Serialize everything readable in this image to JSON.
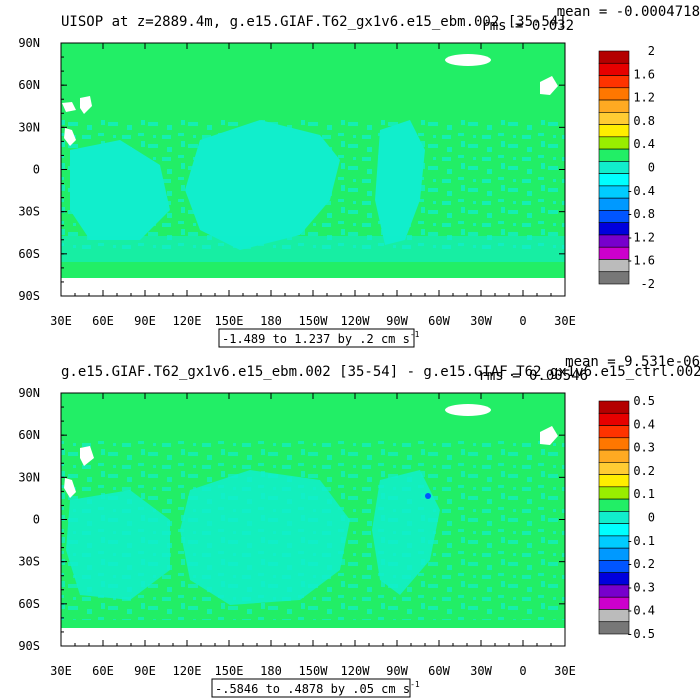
{
  "panels": [
    {
      "title": "UISOP at z=2889.4m, g.e15.GIAF.T62_gx1v6.e15_ebm.002 [35-54]",
      "stat_mean": "mean = -0.0004718",
      "stat_rms": "rms = 0.032",
      "range_label": "-1.489 to 1.237 by .2 cm s",
      "range_unit_exp": "-1"
    },
    {
      "title": "g.e15.GIAF.T62_gx1v6.e15_ebm.002 [35-54] - g.e15.GIAF.T62_gx1v6.e15_ctrl.002",
      "stat_mean": "mean = 9.531e-06",
      "stat_rms": "rms = 0.00546",
      "range_label": "-.5846 to .4878 by .05 cm s",
      "range_unit_exp": "-1"
    }
  ],
  "colors": {
    "land": "#ffffff",
    "zero_band": "#22ee66",
    "neg_band": "#11eecc"
  },
  "chart_data": [
    {
      "type": "heatmap",
      "title": "UISOP at z=2889.4m, g.e15.GIAF.T62_gx1v6.e15_ebm.002 [35-54]",
      "x_ticks": [
        "30E",
        "60E",
        "90E",
        "120E",
        "150E",
        "180",
        "150W",
        "120W",
        "90W",
        "60W",
        "30W",
        "0",
        "30E"
      ],
      "y_ticks": [
        "90N",
        "60N",
        "30N",
        "0",
        "30S",
        "60S",
        "90S"
      ],
      "xlim": [
        30,
        390
      ],
      "ylim": [
        -90,
        90
      ],
      "colorbar": {
        "labels": [
          "2",
          "1.6",
          "1.2",
          "0.8",
          "0.4",
          "0",
          "-0.4",
          "-0.8",
          "-1.2",
          "-1.6",
          "-2"
        ],
        "min": -2,
        "max": 2,
        "colors": [
          "#b40000",
          "#e60000",
          "#ff3300",
          "#ff7700",
          "#ffaa22",
          "#ffcc33",
          "#ffee00",
          "#99ee00",
          "#22ee66",
          "#11eecc",
          "#00ffff",
          "#00ccff",
          "#0099ff",
          "#0055ff",
          "#0000dd",
          "#7700cc",
          "#cc00cc",
          "#bbbbbb",
          "#777777"
        ]
      }
    },
    {
      "type": "heatmap",
      "title": "g.e15.GIAF.T62_gx1v6.e15_ebm.002 [35-54] - g.e15.GIAF.T62_gx1v6.e15_ctrl.002",
      "x_ticks": [
        "30E",
        "60E",
        "90E",
        "120E",
        "150E",
        "180",
        "150W",
        "120W",
        "90W",
        "60W",
        "30W",
        "0",
        "30E"
      ],
      "y_ticks": [
        "90N",
        "60N",
        "30N",
        "0",
        "30S",
        "60S",
        "90S"
      ],
      "xlim": [
        30,
        390
      ],
      "ylim": [
        -90,
        90
      ],
      "colorbar": {
        "labels": [
          "0.5",
          "0.4",
          "0.3",
          "0.2",
          "0.1",
          "0",
          "-0.1",
          "-0.2",
          "-0.3",
          "-0.4",
          "-0.5"
        ],
        "min": -0.5,
        "max": 0.5,
        "colors": [
          "#b40000",
          "#e60000",
          "#ff3300",
          "#ff7700",
          "#ffaa22",
          "#ffcc33",
          "#ffee00",
          "#99ee00",
          "#22ee66",
          "#11eecc",
          "#00ffff",
          "#00ccff",
          "#0099ff",
          "#0055ff",
          "#0000dd",
          "#7700cc",
          "#cc00cc",
          "#bbbbbb",
          "#777777"
        ]
      }
    }
  ]
}
